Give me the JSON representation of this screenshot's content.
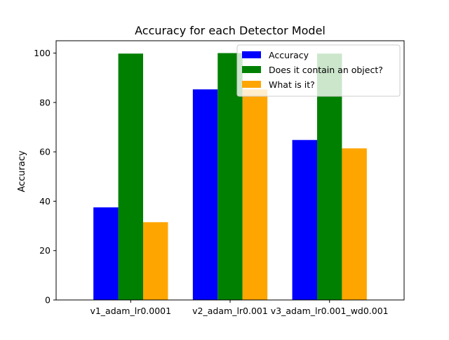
{
  "chart_data": {
    "type": "bar",
    "title": "Accuracy for each Detector Model",
    "xlabel": "",
    "ylabel": "Accuracy",
    "ylim": [
      0,
      105
    ],
    "yticks": [
      0,
      20,
      40,
      60,
      80,
      100
    ],
    "categories": [
      "v1_adam_lr0.0001",
      "v2_adam_lr0.001",
      "v3_adam_lr0.001_wd0.001"
    ],
    "series": [
      {
        "name": "Accuracy",
        "color": "#0000ff",
        "values": [
          37.5,
          85.3,
          64.8
        ]
      },
      {
        "name": "Does it contain an object?",
        "color": "#008000",
        "values": [
          99.8,
          100.0,
          99.8
        ]
      },
      {
        "name": "What is it?",
        "color": "#ffa500",
        "values": [
          31.5,
          85.3,
          61.4
        ]
      }
    ],
    "legend_position": "top-right",
    "grid": false
  }
}
